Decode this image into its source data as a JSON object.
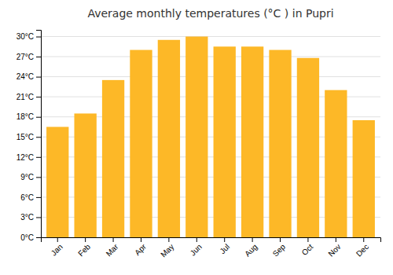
{
  "chart_data": {
    "type": "bar",
    "title": "Average monthly temperatures (°C ) in Pupri",
    "categories": [
      "Jan",
      "Feb",
      "Mar",
      "Apr",
      "May",
      "Jun",
      "Jul",
      "Aug",
      "Sep",
      "Oct",
      "Nov",
      "Dec"
    ],
    "values": [
      16.5,
      18.5,
      23.5,
      28.0,
      29.5,
      30.0,
      28.5,
      28.5,
      28.0,
      26.8,
      22.0,
      17.5
    ],
    "color": "#FDB827",
    "ylim": [
      0,
      31
    ],
    "yticks": [
      {
        "value": 0,
        "label": "0°C"
      },
      {
        "value": 3,
        "label": "3°C"
      },
      {
        "value": 6,
        "label": "6°C"
      },
      {
        "value": 9,
        "label": "9°C"
      },
      {
        "value": 12,
        "label": "12°C"
      },
      {
        "value": 15,
        "label": "15°C"
      },
      {
        "value": 18,
        "label": "18°C"
      },
      {
        "value": 21,
        "label": "21°C"
      },
      {
        "value": 24,
        "label": "24°C"
      },
      {
        "value": 27,
        "label": "27°C"
      },
      {
        "value": 30,
        "label": "30°C"
      }
    ],
    "grid": true
  }
}
